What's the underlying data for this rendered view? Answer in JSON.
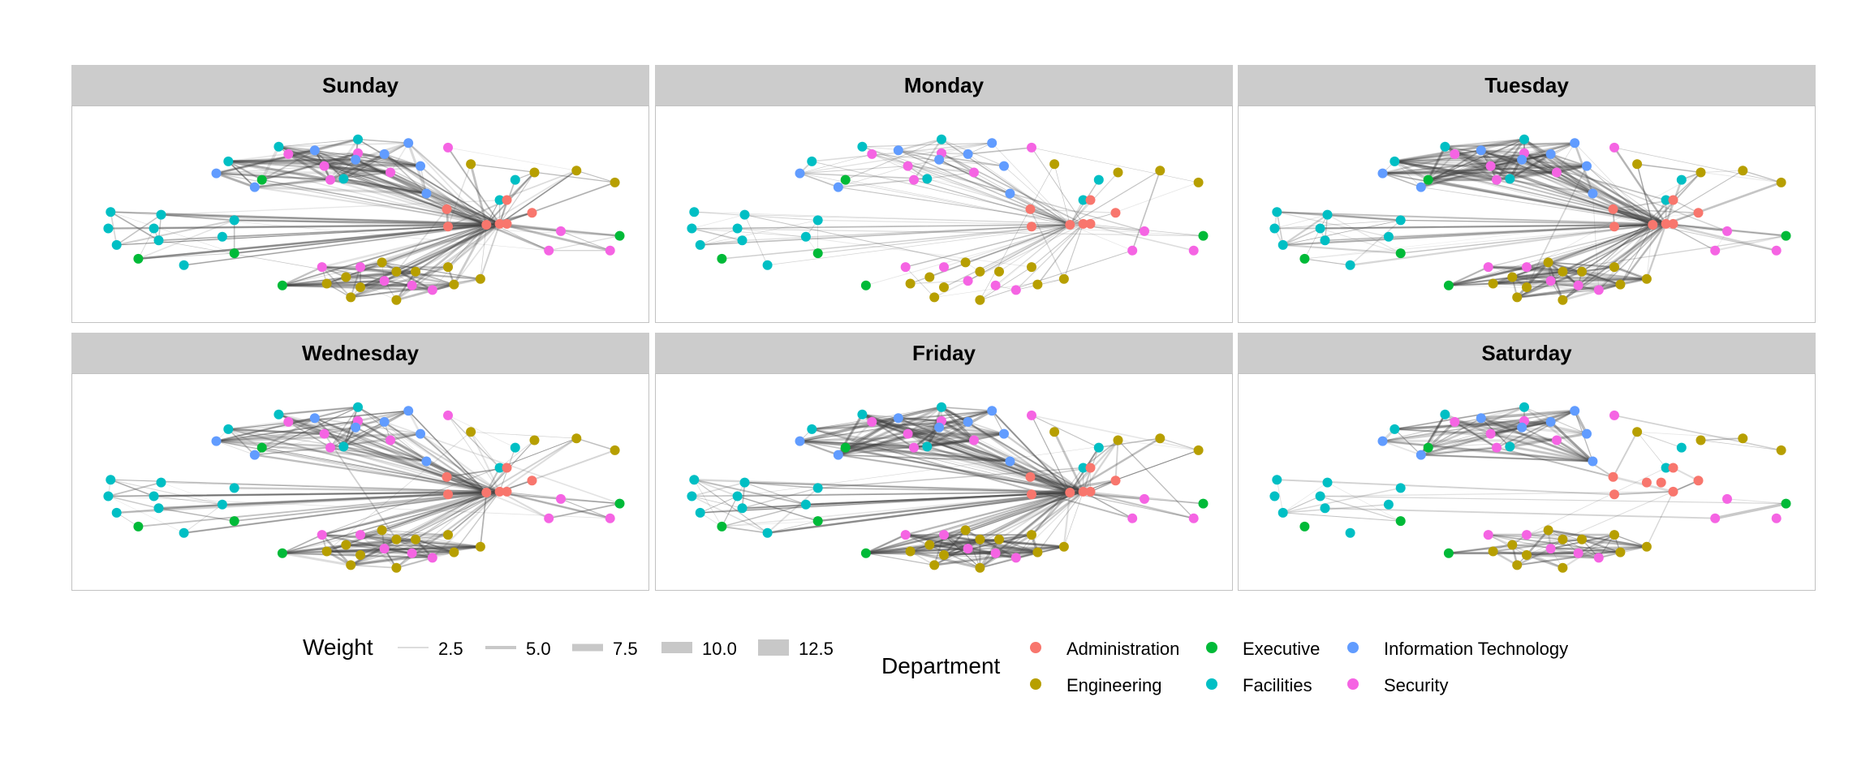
{
  "chart_data": {
    "type": "network",
    "facets": [
      "Sunday",
      "Monday",
      "Tuesday",
      "Wednesday",
      "Friday",
      "Saturday"
    ],
    "legend": {
      "weight": {
        "title": "Weight",
        "breaks": [
          "2.5",
          "5.0",
          "7.5",
          "10.0",
          "12.5"
        ]
      },
      "department": {
        "title": "Department",
        "entries": [
          {
            "label": "Administration",
            "color": "#f8766d"
          },
          {
            "label": "Executive",
            "color": "#00ba38"
          },
          {
            "label": "Information Technology",
            "color": "#619cff"
          },
          {
            "label": "Engineering",
            "color": "#b79f00"
          },
          {
            "label": "Facilities",
            "color": "#00bfc4"
          },
          {
            "label": "Security",
            "color": "#f564e3"
          }
        ]
      }
    },
    "edge_color": "#444444",
    "grid": false
  }
}
